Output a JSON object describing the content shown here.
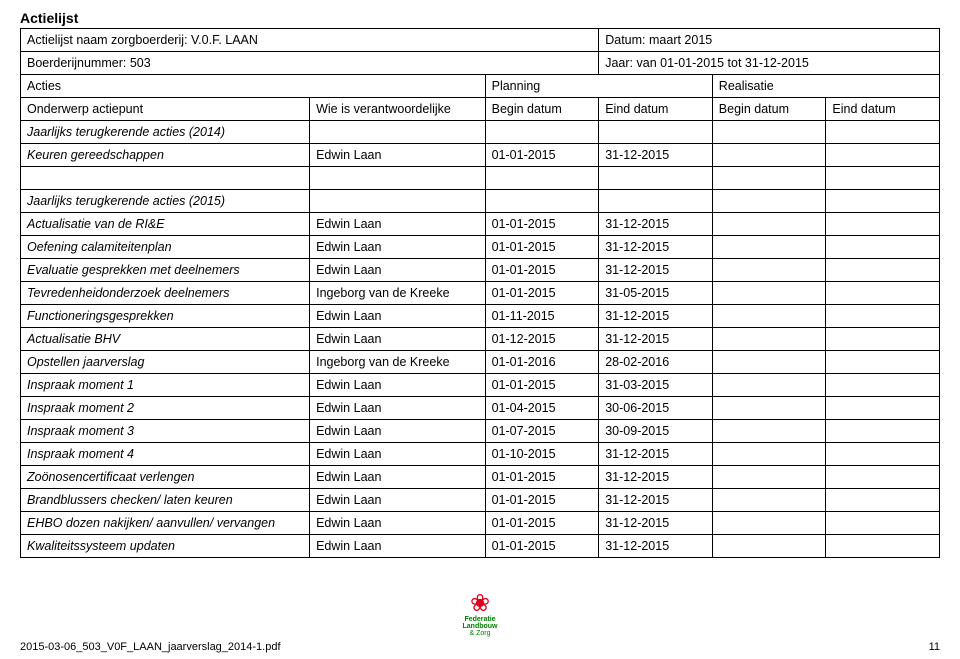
{
  "title": "Actielijst",
  "header": {
    "farm_label": "Actielijst naam zorgboerderij:",
    "farm_value": "V.0.F. LAAN",
    "date_label": "Datum:",
    "date_value": "maart 2015",
    "farmnum_label": "Boerderijnummer:",
    "farmnum_value": "503",
    "year_label": "Jaar:",
    "year_value": "van 01-01-2015 tot 31-12-2015",
    "acties": "Acties",
    "planning": "Planning",
    "realisatie": "Realisatie",
    "onderwerp": "Onderwerp actiepunt",
    "verantwoordelijke": "Wie is verantwoordelijke",
    "begin": "Begin datum",
    "eind": "Eind datum"
  },
  "sections": {
    "s2014": "Jaarlijks terugkerende acties (2014)",
    "s2015": "Jaarlijks terugkerende acties (2015)"
  },
  "rows2014": [
    {
      "a": "Keuren gereedschappen",
      "b": "Edwin Laan",
      "c": "01-01-2015",
      "d": "31-12-2015"
    }
  ],
  "rows2015": [
    {
      "a": "Actualisatie van de RI&E",
      "b": "Edwin Laan",
      "c": "01-01-2015",
      "d": "31-12-2015"
    },
    {
      "a": "Oefening calamiteitenplan",
      "b": "Edwin Laan",
      "c": "01-01-2015",
      "d": "31-12-2015"
    },
    {
      "a": "Evaluatie gesprekken met deelnemers",
      "b": "Edwin Laan",
      "c": "01-01-2015",
      "d": "31-12-2015"
    },
    {
      "a": "Tevredenheidonderzoek deelnemers",
      "b": "Ingeborg van de Kreeke",
      "c": "01-01-2015",
      "d": "31-05-2015"
    },
    {
      "a": "Functioneringsgesprekken",
      "b": "Edwin Laan",
      "c": "01-11-2015",
      "d": "31-12-2015"
    },
    {
      "a": "Actualisatie BHV",
      "b": "Edwin Laan",
      "c": "01-12-2015",
      "d": "31-12-2015"
    },
    {
      "a": "Opstellen jaarverslag",
      "b": "Ingeborg van de Kreeke",
      "c": "01-01-2016",
      "d": "28-02-2016"
    },
    {
      "a": "Inspraak moment 1",
      "b": "Edwin Laan",
      "c": "01-01-2015",
      "d": "31-03-2015"
    },
    {
      "a": "Inspraak moment 2",
      "b": "Edwin Laan",
      "c": "01-04-2015",
      "d": "30-06-2015"
    },
    {
      "a": "Inspraak moment 3",
      "b": "Edwin Laan",
      "c": "01-07-2015",
      "d": "30-09-2015"
    },
    {
      "a": "Inspraak moment 4",
      "b": "Edwin Laan",
      "c": "01-10-2015",
      "d": "31-12-2015"
    },
    {
      "a": "Zoönosencertificaat verlengen",
      "b": "Edwin Laan",
      "c": "01-01-2015",
      "d": "31-12-2015"
    },
    {
      "a": "Brandblussers checken/ laten keuren",
      "b": "Edwin Laan",
      "c": "01-01-2015",
      "d": "31-12-2015"
    },
    {
      "a": "EHBO dozen nakijken/ aanvullen/ vervangen",
      "b": "Edwin Laan",
      "c": "01-01-2015",
      "d": "31-12-2015"
    },
    {
      "a": "Kwaliteitssysteem updaten",
      "b": "Edwin Laan",
      "c": "01-01-2015",
      "d": "31-12-2015"
    }
  ],
  "footer": {
    "filename": "2015-03-06_503_V0F_LAAN_jaarverslag_2014-1.pdf",
    "pagenum": "11",
    "logo_line1": "Federatie",
    "logo_line2": "Landbouw",
    "logo_line3": "& Zorg"
  }
}
